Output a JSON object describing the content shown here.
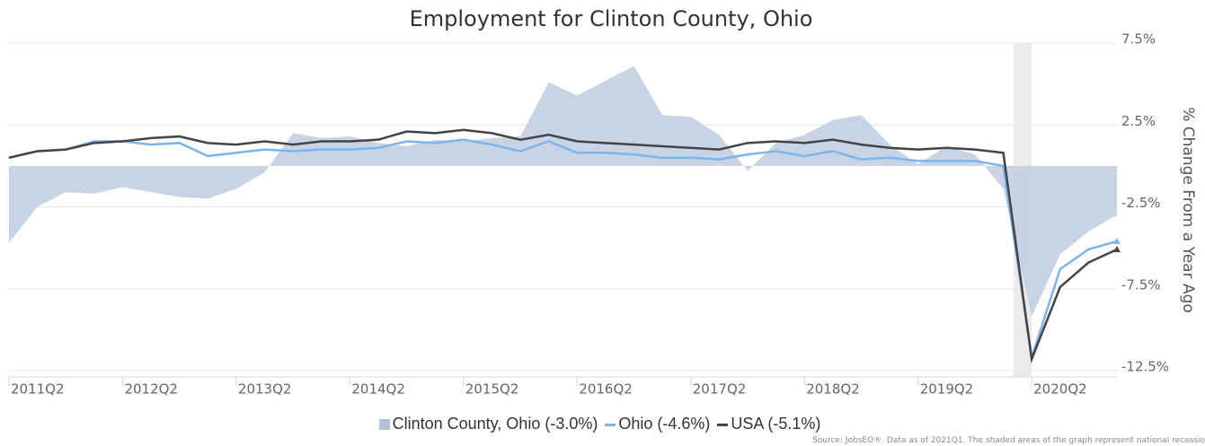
{
  "chart_data": {
    "type": "line",
    "title": "Employment for Clinton County, Ohio",
    "y_label": "% Change From a Year Ago",
    "categories": [
      "2011Q2",
      null,
      null,
      null,
      "2012Q2",
      null,
      null,
      null,
      "2013Q2",
      null,
      null,
      null,
      "2014Q2",
      null,
      null,
      null,
      "2015Q2",
      null,
      null,
      null,
      "2016Q2",
      null,
      null,
      null,
      "2017Q2",
      null,
      null,
      null,
      "2018Q2",
      null,
      null,
      null,
      "2019Q2",
      null,
      null,
      null,
      "2020Q2",
      null,
      null,
      null
    ],
    "series": [
      {
        "name": "Clinton County, Ohio (-3.0%)",
        "color": "#c5d2e3",
        "kind": "area",
        "values": [
          -4.7,
          -2.5,
          -1.6,
          -1.7,
          -1.3,
          -1.6,
          -1.9,
          -2.0,
          -1.4,
          -0.4,
          2.0,
          1.7,
          1.8,
          1.4,
          1.2,
          1.6,
          1.5,
          1.7,
          1.8,
          5.1,
          4.3,
          5.2,
          6.1,
          3.1,
          3.0,
          1.9,
          -0.3,
          1.4,
          1.9,
          2.8,
          3.1,
          1.3,
          0.1,
          1.2,
          0.7,
          -1.4,
          -9.2,
          -5.4,
          -4.0,
          -3.0
        ]
      },
      {
        "name": "Ohio (-4.6%)",
        "color": "#7cb5ec",
        "kind": "line",
        "values": [
          0.5,
          0.9,
          1.0,
          1.5,
          1.5,
          1.3,
          1.4,
          0.6,
          0.8,
          1.0,
          0.9,
          1.0,
          1.0,
          1.1,
          1.5,
          1.4,
          1.6,
          1.3,
          0.9,
          1.5,
          0.8,
          0.8,
          0.7,
          0.5,
          0.5,
          0.4,
          0.7,
          0.9,
          0.6,
          0.9,
          0.4,
          0.5,
          0.3,
          0.3,
          0.3,
          0.0,
          -11.7,
          -6.3,
          -5.1,
          -4.6
        ]
      },
      {
        "name": "USA (-5.1%)",
        "color": "#434348",
        "kind": "line",
        "values": [
          0.5,
          0.9,
          1.0,
          1.4,
          1.5,
          1.7,
          1.8,
          1.4,
          1.3,
          1.5,
          1.3,
          1.5,
          1.5,
          1.6,
          2.1,
          2.0,
          2.2,
          2.0,
          1.6,
          1.9,
          1.5,
          1.4,
          1.3,
          1.2,
          1.1,
          1.0,
          1.4,
          1.5,
          1.4,
          1.6,
          1.3,
          1.1,
          1.0,
          1.1,
          1.0,
          0.8,
          -11.8,
          -7.4,
          -5.9,
          -5.1
        ]
      }
    ],
    "ylim": [
      -12.5,
      7.5
    ],
    "yticks": [
      {
        "value": 7.5,
        "label": "7.5%"
      },
      {
        "value": 2.5,
        "label": "2.5%"
      },
      {
        "value": -2.5,
        "label": "-2.5%"
      },
      {
        "value": -7.5,
        "label": "-7.5%"
      },
      {
        "value": -12.5,
        "label": "-12.5%"
      }
    ],
    "grid": true,
    "source": "Source: JobsEO®. Data as of 2021Q1. The shaded areas of the graph represent national recessio"
  }
}
